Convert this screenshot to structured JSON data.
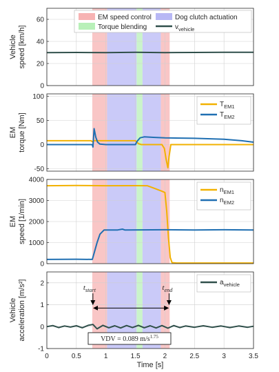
{
  "chart_data": [
    {
      "type": "line",
      "ylabel": [
        "Vehicle",
        "speed [km/h]"
      ],
      "ylim": [
        0,
        70
      ],
      "yticks": [
        0,
        20,
        40,
        60
      ],
      "xlim": [
        0,
        3.5
      ],
      "legend": {
        "placement": "top",
        "entries": [
          {
            "label": "EM speed control",
            "kind": "patch",
            "color": "#f7b3b3"
          },
          {
            "label": "Dog clutch actuation",
            "kind": "patch",
            "color": "#b8b8f5"
          },
          {
            "label": "Torque blending",
            "kind": "patch",
            "color": "#b8f0b8"
          },
          {
            "label": "v",
            "sub": "vehicle",
            "kind": "line",
            "color": "#2f4f4a"
          }
        ]
      },
      "series": [
        {
          "name": "v_vehicle",
          "color": "#2f4f4a",
          "points": [
            [
              0,
              29.8
            ],
            [
              0.5,
              30.0
            ],
            [
              1.0,
              29.9
            ],
            [
              1.5,
              30.1
            ],
            [
              2.0,
              29.9
            ],
            [
              2.5,
              30.0
            ],
            [
              3.0,
              30.1
            ],
            [
              3.5,
              30.2
            ]
          ]
        }
      ]
    },
    {
      "type": "line",
      "ylabel": [
        "EM",
        "torque [Nm]"
      ],
      "ylim": [
        -55,
        105
      ],
      "yticks": [
        -50,
        0,
        50,
        100
      ],
      "xlim": [
        0,
        3.5
      ],
      "legend": {
        "placement": "top-right",
        "entries": [
          {
            "label": "T",
            "sub": "EM1",
            "kind": "line",
            "color": "#f2b100"
          },
          {
            "label": "T",
            "sub": "EM2",
            "kind": "line",
            "color": "#1f6fb2"
          }
        ]
      },
      "series": [
        {
          "name": "T_EM1",
          "color": "#f2b100",
          "points": [
            [
              0,
              8
            ],
            [
              0.75,
              8
            ],
            [
              0.77,
              6
            ],
            [
              0.8,
              8
            ],
            [
              1.5,
              8
            ],
            [
              1.55,
              2
            ],
            [
              1.6,
              0
            ],
            [
              1.95,
              0
            ],
            [
              1.99,
              -8
            ],
            [
              2.02,
              -30
            ],
            [
              2.05,
              -48
            ],
            [
              2.07,
              -25
            ],
            [
              2.1,
              0
            ],
            [
              3.5,
              0
            ]
          ]
        },
        {
          "name": "T_EM2",
          "color": "#1f6fb2",
          "points": [
            [
              0,
              0
            ],
            [
              0.77,
              0
            ],
            [
              0.78,
              -5
            ],
            [
              0.8,
              33
            ],
            [
              0.83,
              15
            ],
            [
              0.86,
              5
            ],
            [
              0.9,
              1
            ],
            [
              1.0,
              0
            ],
            [
              1.5,
              0
            ],
            [
              1.53,
              7
            ],
            [
              1.58,
              14
            ],
            [
              1.65,
              16
            ],
            [
              1.8,
              15
            ],
            [
              2.0,
              14
            ],
            [
              2.5,
              13
            ],
            [
              3.0,
              11
            ],
            [
              3.3,
              8
            ],
            [
              3.5,
              5
            ]
          ]
        }
      ]
    },
    {
      "type": "line",
      "ylabel": [
        "EM",
        "speed [1/min]"
      ],
      "ylim": [
        0,
        4000
      ],
      "yticks": [
        0,
        1000,
        2000,
        3000,
        4000
      ],
      "xlim": [
        0,
        3.5
      ],
      "legend": {
        "placement": "top-right",
        "entries": [
          {
            "label": "n",
            "sub": "EM1",
            "kind": "line",
            "color": "#f2b100"
          },
          {
            "label": "n",
            "sub": "EM2",
            "kind": "line",
            "color": "#1f6fb2"
          }
        ]
      },
      "series": [
        {
          "name": "n_EM1",
          "color": "#f2b100",
          "points": [
            [
              0,
              3700
            ],
            [
              0.5,
              3710
            ],
            [
              1.0,
              3700
            ],
            [
              1.5,
              3705
            ],
            [
              1.7,
              3700
            ],
            [
              1.8,
              3600
            ],
            [
              1.95,
              3440
            ],
            [
              2.0,
              3380
            ],
            [
              2.03,
              2500
            ],
            [
              2.06,
              1200
            ],
            [
              2.09,
              300
            ],
            [
              2.12,
              50
            ],
            [
              2.2,
              30
            ],
            [
              3.5,
              30
            ]
          ]
        },
        {
          "name": "n_EM2",
          "color": "#1f6fb2",
          "points": [
            [
              0,
              200
            ],
            [
              0.5,
              210
            ],
            [
              0.77,
              200
            ],
            [
              0.8,
              500
            ],
            [
              0.85,
              1000
            ],
            [
              0.9,
              1400
            ],
            [
              0.97,
              1600
            ],
            [
              1.2,
              1600
            ],
            [
              1.28,
              1640
            ],
            [
              1.32,
              1600
            ],
            [
              2.0,
              1610
            ],
            [
              2.5,
              1600
            ],
            [
              3.0,
              1610
            ],
            [
              3.5,
              1600
            ]
          ]
        }
      ]
    },
    {
      "type": "line",
      "ylabel": [
        "Vehicle",
        "acceleration [m/s²]"
      ],
      "ylim": [
        -1,
        2.5
      ],
      "yticks": [
        -1,
        0,
        1,
        2
      ],
      "xlim": [
        0,
        3.5
      ],
      "xticks": [
        0,
        0.5,
        1,
        1.5,
        2,
        2.5,
        3,
        3.5
      ],
      "xticklabels": [
        "0",
        "0.5",
        "1",
        "1.5",
        "2",
        "2.5",
        "3",
        "3.5"
      ],
      "xlabel": "Time [s]",
      "legend": {
        "placement": "top-right",
        "entries": [
          {
            "label": "a",
            "sub": "vehicle",
            "kind": "line",
            "color": "#2f4f4a"
          }
        ]
      },
      "annotations": {
        "t_start": {
          "label": "t",
          "sub": "start",
          "x": 0.78
        },
        "t_end": {
          "label": "t",
          "sub": "end",
          "x": 2.07
        },
        "arrow_y": 0.85,
        "vdv_text": "VDV = 0.089 m/s",
        "vdv_exp": "1.75"
      },
      "series": [
        {
          "name": "a_vehicle",
          "color": "#2f4f4a",
          "points": [
            [
              0,
              0.0
            ],
            [
              0.1,
              0.05
            ],
            [
              0.2,
              -0.04
            ],
            [
              0.3,
              0.03
            ],
            [
              0.4,
              -0.02
            ],
            [
              0.5,
              0.04
            ],
            [
              0.6,
              -0.05
            ],
            [
              0.7,
              0.06
            ],
            [
              0.78,
              0.1
            ],
            [
              0.85,
              -0.1
            ],
            [
              0.95,
              0.06
            ],
            [
              1.05,
              -0.05
            ],
            [
              1.15,
              0.04
            ],
            [
              1.25,
              -0.06
            ],
            [
              1.35,
              0.05
            ],
            [
              1.45,
              -0.04
            ],
            [
              1.55,
              0.06
            ],
            [
              1.65,
              -0.05
            ],
            [
              1.75,
              0.04
            ],
            [
              1.85,
              -0.06
            ],
            [
              1.95,
              0.05
            ],
            [
              2.05,
              -0.07
            ],
            [
              2.15,
              0.05
            ],
            [
              2.25,
              -0.04
            ],
            [
              2.35,
              0.03
            ],
            [
              2.5,
              -0.03
            ],
            [
              2.65,
              0.04
            ],
            [
              2.8,
              -0.03
            ],
            [
              2.95,
              0.03
            ],
            [
              3.1,
              -0.04
            ],
            [
              3.25,
              0.03
            ],
            [
              3.4,
              -0.03
            ],
            [
              3.5,
              0.02
            ]
          ]
        }
      ]
    }
  ],
  "phases": [
    {
      "name": "EM speed control",
      "start": 0.77,
      "end": 1.02,
      "color": "#f7b3b3"
    },
    {
      "name": "Dog clutch actuation",
      "start": 1.02,
      "end": 1.52,
      "color": "#b8b8f5"
    },
    {
      "name": "Torque blending",
      "start": 1.52,
      "end": 1.62,
      "color": "#b8f0b8"
    },
    {
      "name": "Dog clutch actuation",
      "start": 1.62,
      "end": 1.93,
      "color": "#b8b8f5"
    },
    {
      "name": "EM speed control",
      "start": 1.93,
      "end": 2.08,
      "color": "#f7b3b3"
    }
  ]
}
